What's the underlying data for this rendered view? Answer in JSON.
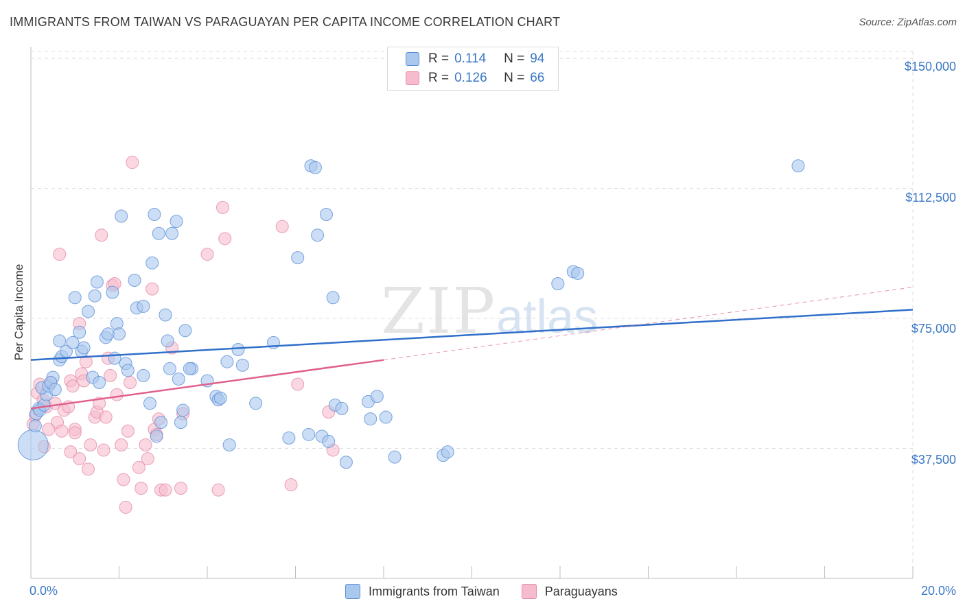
{
  "title": "IMMIGRANTS FROM TAIWAN VS PARAGUAYAN PER CAPITA INCOME CORRELATION CHART",
  "source": "Source: ZipAtlas.com",
  "watermark": {
    "zip": "ZIP",
    "atlas": "atlas"
  },
  "legend_top": {
    "rows": [
      {
        "r_label": "R =",
        "r_value": "0.114",
        "n_label": "N =",
        "n_value": "94"
      },
      {
        "r_label": "R =",
        "r_value": "0.126",
        "n_label": "N =",
        "n_value": "66"
      }
    ]
  },
  "colors": {
    "taiwan_fill": "#aac8ee",
    "taiwan_stroke": "#5a8fd6",
    "taiwan_line": "#2f6fca",
    "paraguay_fill": "#f6bccd",
    "paraguay_stroke": "#e48aa8",
    "paraguay_line": "#e0608e",
    "grid": "#dcdcdc",
    "accent_text": "#3b78c6"
  },
  "chart_data": {
    "type": "scatter",
    "title": "IMMIGRANTS FROM TAIWAN VS PARAGUAYAN PER CAPITA INCOME CORRELATION CHART",
    "xlabel": "",
    "ylabel": "Per Capita Income",
    "xlim": [
      0,
      20
    ],
    "ylim": [
      0,
      152000
    ],
    "x_tick_labels": [
      "0.0%",
      "20.0%"
    ],
    "y_ticks": [
      37500,
      75000,
      112500,
      150000
    ],
    "y_tick_labels": [
      "$37,500",
      "$75,000",
      "$112,500",
      "$150,000"
    ],
    "grid": true,
    "legend_position": "bottom",
    "series": [
      {
        "name": "Immigrants from Taiwan",
        "r": 0.114,
        "n": 94,
        "trend": {
          "x": [
            0,
            20
          ],
          "y": [
            63000,
            77500
          ]
        },
        "points": [
          [
            0.05,
            38500,
            3
          ],
          [
            0.1,
            44000,
            1
          ],
          [
            0.12,
            47500,
            1
          ],
          [
            0.18,
            49000,
            1
          ],
          [
            0.2,
            48500,
            1
          ],
          [
            0.3,
            50000,
            1
          ],
          [
            0.35,
            53000,
            1
          ],
          [
            0.25,
            55000,
            1
          ],
          [
            0.4,
            55500,
            1
          ],
          [
            0.5,
            58000,
            1
          ],
          [
            0.45,
            56500,
            1
          ],
          [
            0.55,
            54500,
            1
          ],
          [
            0.65,
            63000,
            1
          ],
          [
            0.7,
            64000,
            1
          ],
          [
            0.8,
            65500,
            1
          ],
          [
            0.65,
            68500,
            1
          ],
          [
            0.95,
            68000,
            1
          ],
          [
            1.1,
            71000,
            1
          ],
          [
            1.15,
            65500,
            1
          ],
          [
            1.2,
            66500,
            1
          ],
          [
            1.0,
            81000,
            1
          ],
          [
            1.3,
            77000,
            1
          ],
          [
            1.45,
            81500,
            1
          ],
          [
            1.5,
            85500,
            1
          ],
          [
            1.4,
            58000,
            1
          ],
          [
            1.55,
            56500,
            1
          ],
          [
            1.7,
            69500,
            1
          ],
          [
            1.75,
            70500,
            1
          ],
          [
            1.85,
            82500,
            1
          ],
          [
            1.95,
            73500,
            1
          ],
          [
            2.0,
            70500,
            1
          ],
          [
            1.9,
            63500,
            1
          ],
          [
            2.15,
            62000,
            1
          ],
          [
            2.2,
            60000,
            1
          ],
          [
            2.05,
            104500,
            1
          ],
          [
            2.35,
            86000,
            1
          ],
          [
            2.4,
            78000,
            1
          ],
          [
            2.55,
            78500,
            1
          ],
          [
            2.55,
            58500,
            1
          ],
          [
            2.7,
            50500,
            1
          ],
          [
            2.85,
            41000,
            1
          ],
          [
            2.95,
            45000,
            1
          ],
          [
            2.75,
            91000,
            1
          ],
          [
            2.8,
            105000,
            1
          ],
          [
            2.9,
            99500,
            1
          ],
          [
            3.2,
            99500,
            1
          ],
          [
            3.3,
            103000,
            1
          ],
          [
            3.05,
            76000,
            1
          ],
          [
            3.1,
            68500,
            1
          ],
          [
            3.15,
            60500,
            1
          ],
          [
            3.35,
            57500,
            1
          ],
          [
            3.4,
            45000,
            1
          ],
          [
            3.45,
            48500,
            1
          ],
          [
            3.5,
            71500,
            1
          ],
          [
            3.65,
            60500,
            1
          ],
          [
            3.6,
            60500,
            1
          ],
          [
            4.0,
            57000,
            1
          ],
          [
            4.2,
            52500,
            1
          ],
          [
            4.25,
            51500,
            1
          ],
          [
            4.3,
            52000,
            1
          ],
          [
            4.45,
            62500,
            1
          ],
          [
            4.5,
            38500,
            1
          ],
          [
            4.7,
            66000,
            1
          ],
          [
            4.8,
            61500,
            1
          ],
          [
            5.1,
            50500,
            1
          ],
          [
            5.5,
            68000,
            1
          ],
          [
            5.85,
            40500,
            1
          ],
          [
            6.05,
            92500,
            1
          ],
          [
            6.3,
            41500,
            1
          ],
          [
            6.35,
            119000,
            1
          ],
          [
            6.45,
            118500,
            1
          ],
          [
            6.5,
            99000,
            1
          ],
          [
            6.6,
            41000,
            1
          ],
          [
            6.7,
            105000,
            1
          ],
          [
            6.75,
            39500,
            1
          ],
          [
            6.85,
            81000,
            1
          ],
          [
            6.9,
            50000,
            1
          ],
          [
            7.05,
            49000,
            1
          ],
          [
            7.15,
            33500,
            1
          ],
          [
            7.65,
            51000,
            1
          ],
          [
            7.7,
            46000,
            1
          ],
          [
            7.85,
            52500,
            1
          ],
          [
            8.05,
            46500,
            1
          ],
          [
            8.25,
            35000,
            1
          ],
          [
            9.35,
            35500,
            1
          ],
          [
            9.45,
            36500,
            1
          ],
          [
            11.95,
            85000,
            1
          ],
          [
            12.3,
            88500,
            1
          ],
          [
            12.4,
            88000,
            1
          ],
          [
            17.4,
            119000,
            1
          ]
        ]
      },
      {
        "name": "Paraguayans",
        "r": 0.126,
        "n": 66,
        "trend": {
          "x": [
            0,
            20
          ],
          "y": [
            49000,
            84000
          ]
        },
        "points": [
          [
            0.05,
            44500,
            1
          ],
          [
            0.1,
            47000,
            1
          ],
          [
            0.15,
            53500,
            1
          ],
          [
            0.2,
            56000,
            1
          ],
          [
            0.28,
            51500,
            1
          ],
          [
            0.35,
            49500,
            1
          ],
          [
            0.45,
            56500,
            1
          ],
          [
            0.55,
            50500,
            1
          ],
          [
            0.6,
            45000,
            1
          ],
          [
            0.7,
            42500,
            1
          ],
          [
            0.75,
            48500,
            1
          ],
          [
            0.85,
            49500,
            1
          ],
          [
            0.9,
            57000,
            1
          ],
          [
            0.95,
            55500,
            1
          ],
          [
            0.65,
            93500,
            1
          ],
          [
            1.1,
            73500,
            1
          ],
          [
            1.15,
            59000,
            1
          ],
          [
            1.2,
            57000,
            1
          ],
          [
            1.25,
            62500,
            1
          ],
          [
            1.0,
            43000,
            1
          ],
          [
            0.9,
            36500,
            1
          ],
          [
            1.1,
            34500,
            1
          ],
          [
            1.3,
            31500,
            1
          ],
          [
            1.35,
            38500,
            1
          ],
          [
            1.45,
            46500,
            1
          ],
          [
            1.5,
            48000,
            1
          ],
          [
            1.55,
            50500,
            1
          ],
          [
            1.6,
            99000,
            1
          ],
          [
            1.65,
            37000,
            1
          ],
          [
            1.75,
            63500,
            1
          ],
          [
            1.8,
            58500,
            1
          ],
          [
            1.85,
            84500,
            1
          ],
          [
            1.9,
            85000,
            1
          ],
          [
            1.95,
            53000,
            1
          ],
          [
            2.05,
            38500,
            1
          ],
          [
            2.1,
            28500,
            1
          ],
          [
            2.15,
            20500,
            1
          ],
          [
            2.2,
            42500,
            1
          ],
          [
            2.25,
            56500,
            1
          ],
          [
            2.3,
            120000,
            1
          ],
          [
            2.45,
            32000,
            1
          ],
          [
            2.5,
            26000,
            1
          ],
          [
            2.6,
            38500,
            1
          ],
          [
            2.65,
            34500,
            1
          ],
          [
            2.75,
            83500,
            1
          ],
          [
            2.8,
            43000,
            1
          ],
          [
            2.85,
            41500,
            1
          ],
          [
            2.9,
            46000,
            1
          ],
          [
            2.95,
            25500,
            1
          ],
          [
            3.05,
            25500,
            1
          ],
          [
            3.2,
            66500,
            1
          ],
          [
            3.4,
            26000,
            1
          ],
          [
            3.45,
            47500,
            1
          ],
          [
            4.0,
            93500,
            1
          ],
          [
            4.25,
            25500,
            1
          ],
          [
            4.35,
            107000,
            1
          ],
          [
            4.4,
            98000,
            1
          ],
          [
            5.7,
            101500,
            1
          ],
          [
            5.9,
            27000,
            1
          ],
          [
            6.05,
            56000,
            1
          ],
          [
            6.75,
            48000,
            1
          ],
          [
            6.85,
            37000,
            1
          ],
          [
            0.3,
            38000,
            1
          ],
          [
            0.4,
            43000,
            1
          ],
          [
            1.0,
            42000,
            1
          ],
          [
            1.7,
            46500,
            1
          ]
        ]
      }
    ]
  },
  "legend_bottom": {
    "items": [
      "Immigrants from Taiwan",
      "Paraguayans"
    ]
  }
}
